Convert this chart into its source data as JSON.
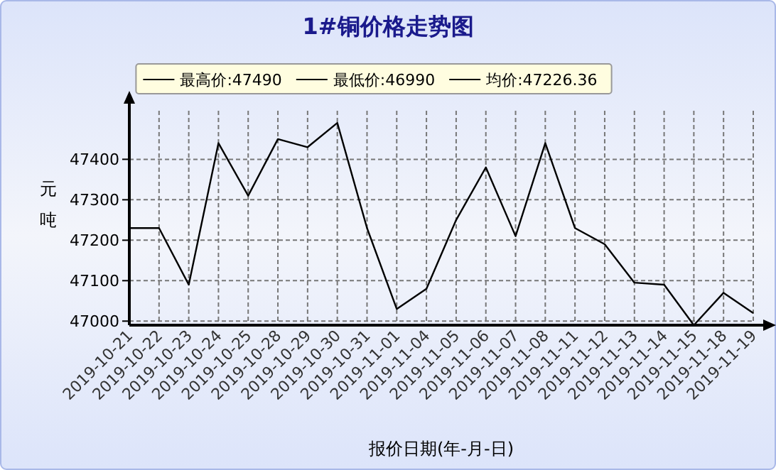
{
  "chart_data": {
    "type": "line",
    "title": "1#铜价格走势图",
    "xlabel": "报价日期(年-月-日)",
    "ylabel": "元吨",
    "annotations": [
      "最高价:47490",
      "最低价:46990",
      "均价:47226.36"
    ],
    "categories": [
      "2019-10-21",
      "2019-10-22",
      "2019-10-23",
      "2019-10-24",
      "2019-10-25",
      "2019-10-28",
      "2019-10-29",
      "2019-10-30",
      "2019-10-31",
      "2019-11-01",
      "2019-11-04",
      "2019-11-05",
      "2019-11-06",
      "2019-11-07",
      "2019-11-08",
      "2019-11-11",
      "2019-11-12",
      "2019-11-13",
      "2019-11-14",
      "2019-11-15",
      "2019-11-18",
      "2019-11-19"
    ],
    "series": [
      {
        "color": "#000000",
        "values": [
          47230,
          47230,
          47090,
          47440,
          47310,
          47450,
          47430,
          47490,
          47230,
          47030,
          47080,
          47250,
          47380,
          47210,
          47440,
          47230,
          47190,
          47095,
          47090,
          46990,
          47070,
          47020
        ]
      }
    ],
    "ylim": [
      46990,
      47520
    ],
    "yticks": [
      47000,
      47100,
      47200,
      47300,
      47400
    ],
    "grid": true,
    "marker": "none",
    "line_style": "solid"
  }
}
